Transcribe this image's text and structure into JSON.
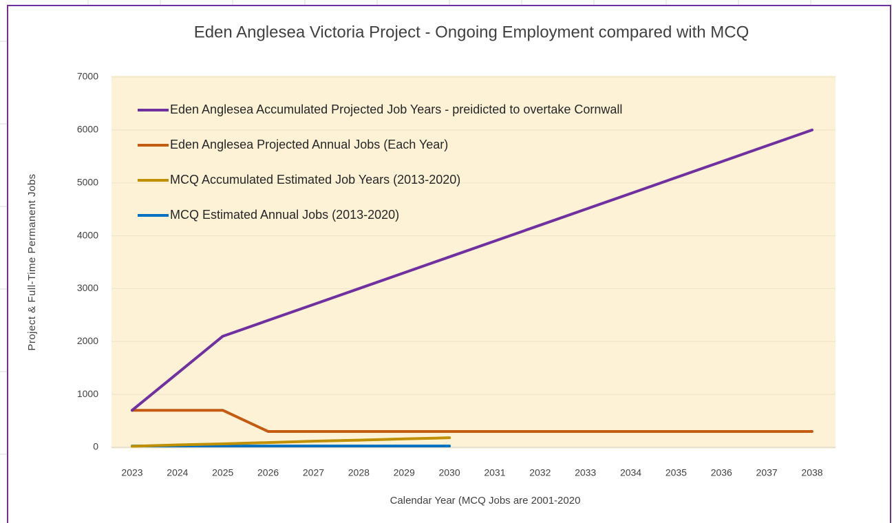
{
  "chart_data": {
    "type": "line",
    "title": "Eden Anglesea Victoria Project  - Ongoing Employment compared with MCQ",
    "x_label": "Calendar Year (MCQ Jobs are 2001-2020",
    "y_label": "Project  & Full-Time Permanent Jobs",
    "categories": [
      "2023",
      "2024",
      "2025",
      "2026",
      "2027",
      "2028",
      "2029",
      "2030",
      "2031",
      "2032",
      "2033",
      "2034",
      "2035",
      "2036",
      "2037",
      "2038"
    ],
    "series": [
      {
        "name": "Eden Anglesea Accumulated Projected Job Years - preidicted to overtake Cornwall",
        "color": "#7030a0",
        "values": [
          700,
          1400,
          2100,
          2400,
          2700,
          3000,
          3300,
          3600,
          3900,
          4200,
          4500,
          4800,
          5100,
          5400,
          5700,
          6000
        ]
      },
      {
        "name": "Eden Anglesea Projected Annual Jobs (Each Year)",
        "color": "#c55a11",
        "values": [
          700,
          700,
          700,
          300,
          300,
          300,
          300,
          300,
          300,
          300,
          300,
          300,
          300,
          300,
          300,
          300
        ]
      },
      {
        "name": "MCQ Accumulated Estimated Job Years (2013-2020)",
        "color": "#bf9000",
        "values": [
          20,
          45,
          65,
          90,
          115,
          135,
          160,
          180,
          null,
          null,
          null,
          null,
          null,
          null,
          null,
          null
        ]
      },
      {
        "name": "MCQ Estimated Annual Jobs (2013-2020)",
        "color": "#0070c0",
        "values": [
          25,
          25,
          25,
          25,
          25,
          25,
          25,
          25,
          null,
          null,
          null,
          null,
          null,
          null,
          null,
          null
        ]
      }
    ],
    "ylim": [
      0,
      7000
    ],
    "yticks": [
      0,
      1000,
      2000,
      3000,
      4000,
      5000,
      6000,
      7000
    ],
    "grid": true,
    "legend": "upper left"
  }
}
